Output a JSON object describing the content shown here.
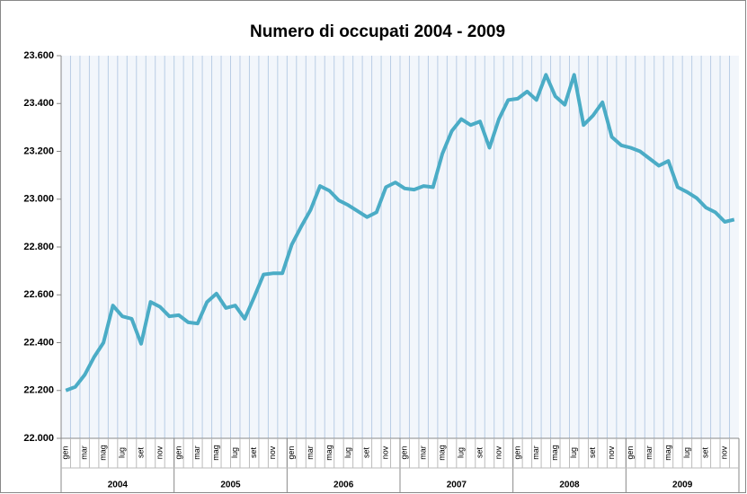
{
  "chart_data": {
    "type": "line",
    "title": "Numero di occupati 2004 - 2009",
    "categories": [
      "gen",
      null,
      "mar",
      null,
      "mag",
      null,
      "lug",
      null,
      "set",
      null,
      "nov",
      null,
      "gen",
      null,
      "mar",
      null,
      "mag",
      null,
      "lug",
      null,
      "set",
      null,
      "nov",
      null,
      "gen",
      null,
      "mar",
      null,
      "mag",
      null,
      "lug",
      null,
      "set",
      null,
      "nov",
      null,
      "gen",
      null,
      "mar",
      null,
      "mag",
      null,
      "lug",
      null,
      "set",
      null,
      "nov",
      null,
      "gen",
      null,
      "mar",
      null,
      "mag",
      null,
      "lug",
      null,
      "set",
      null,
      "nov",
      null,
      "gen",
      null,
      "mar",
      null,
      "mag",
      null,
      "lug",
      null,
      "set",
      null,
      "nov",
      null
    ],
    "years": [
      "2004",
      "2005",
      "2006",
      "2007",
      "2008",
      "2009"
    ],
    "values": [
      22200,
      22215,
      22265,
      22340,
      22400,
      22555,
      22510,
      22500,
      22395,
      22570,
      22550,
      22510,
      22515,
      22485,
      22480,
      22570,
      22605,
      22545,
      22555,
      22500,
      22590,
      22685,
      22690,
      22690,
      22810,
      22885,
      22955,
      23055,
      23035,
      22995,
      22975,
      22950,
      22925,
      22945,
      23050,
      23070,
      23045,
      23040,
      23055,
      23050,
      23190,
      23285,
      23335,
      23310,
      23325,
      23215,
      23335,
      23415,
      23420,
      23450,
      23415,
      23520,
      23430,
      23395,
      23520,
      23310,
      23350,
      23405,
      23260,
      23225,
      23215,
      23200,
      23170,
      23140,
      23160,
      23050,
      23030,
      23005,
      22965,
      22945,
      22905,
      22915
    ],
    "color": "#4bacc6",
    "ylim": [
      22000,
      23600
    ],
    "yticks": [
      {
        "value": 22000,
        "label": "22.000"
      },
      {
        "value": 22200,
        "label": "22.200"
      },
      {
        "value": 22400,
        "label": "22.400"
      },
      {
        "value": 22600,
        "label": "22.600"
      },
      {
        "value": 22800,
        "label": "22.800"
      },
      {
        "value": 23000,
        "label": "23.000"
      },
      {
        "value": 23200,
        "label": "23.200"
      },
      {
        "value": 23400,
        "label": "23.400"
      },
      {
        "value": 23600,
        "label": "23.600"
      }
    ]
  }
}
